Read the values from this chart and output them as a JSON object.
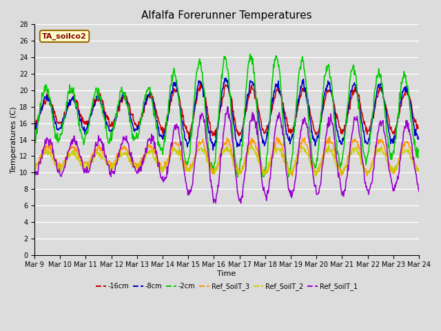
{
  "title": "Alfalfa Forerunner Temperatures",
  "xlabel": "Time",
  "ylabel": "Temperatures (C)",
  "annotation": "TA_soilco2",
  "ylim": [
    0,
    28
  ],
  "yticks": [
    0,
    2,
    4,
    6,
    8,
    10,
    12,
    14,
    16,
    18,
    20,
    22,
    24,
    26,
    28
  ],
  "xtick_labels": [
    "Mar 9",
    "Mar 10",
    "Mar 11",
    "Mar 12",
    "Mar 13",
    "Mar 14",
    "Mar 15",
    "Mar 16",
    "Mar 17",
    "Mar 18",
    "Mar 19",
    "Mar 20",
    "Mar 21",
    "Mar 22",
    "Mar 23",
    "Mar 24"
  ],
  "series": {
    "neg16cm": {
      "label": "-16cm",
      "color": "#cc0000",
      "linewidth": 1.2
    },
    "neg8cm": {
      "label": "-8cm",
      "color": "#0000cc",
      "linewidth": 1.2
    },
    "neg2cm": {
      "label": "-2cm",
      "color": "#00cc00",
      "linewidth": 1.2
    },
    "ref3": {
      "label": "Ref_SoilT_3",
      "color": "#ff9900",
      "linewidth": 1.2
    },
    "ref2": {
      "label": "Ref_SoilT_2",
      "color": "#cccc00",
      "linewidth": 1.2
    },
    "ref1": {
      "label": "Ref_SoilT_1",
      "color": "#9900cc",
      "linewidth": 1.2
    }
  },
  "background_color": "#dcdcdc",
  "fig_background": "#dcdcdc",
  "grid_color": "#ffffff",
  "title_fontsize": 11,
  "label_fontsize": 8,
  "tick_fontsize": 7
}
